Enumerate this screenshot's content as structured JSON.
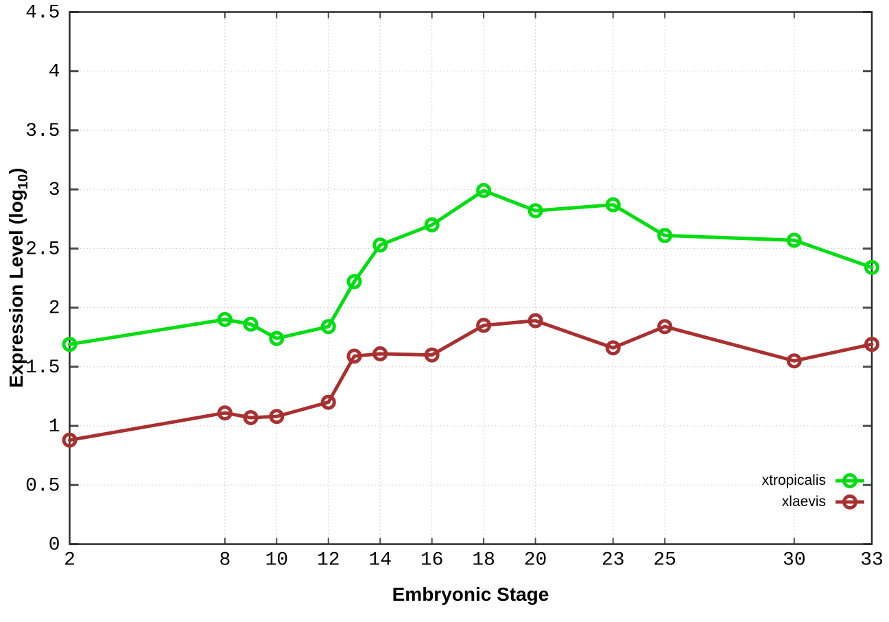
{
  "chart_data": {
    "type": "line",
    "xlabel": "Embryonic Stage",
    "ylabel": "Expression Level (log10)",
    "ylabel_parts": {
      "prefix": "Expression Level (log",
      "sub": "10",
      "suffix": ")"
    },
    "xlim": [
      2,
      33
    ],
    "ylim": [
      0,
      4.5
    ],
    "grid": true,
    "legend_position": "inside-bottom-right",
    "x": [
      2,
      8,
      9,
      10,
      12,
      13,
      14,
      16,
      18,
      20,
      23,
      25,
      30,
      33
    ],
    "x_tick_values": [
      2,
      8,
      10,
      12,
      14,
      16,
      18,
      20,
      23,
      25,
      30,
      33
    ],
    "x_tick_labels": [
      "2",
      "8",
      "10",
      "12",
      "14",
      "16",
      "18",
      "20",
      "23",
      "25",
      "30",
      "33"
    ],
    "y_tick_values": [
      0,
      0.5,
      1,
      1.5,
      2,
      2.5,
      3,
      3.5,
      4,
      4.5
    ],
    "y_tick_labels": [
      "0",
      "0.5",
      "1",
      "1.5",
      "2",
      "2.5",
      "3",
      "3.5",
      "4",
      "4.5"
    ],
    "series": [
      {
        "name": "xtropicalis",
        "color": "#00dd11",
        "values": [
          1.69,
          1.9,
          1.86,
          1.74,
          1.84,
          2.22,
          2.53,
          2.7,
          2.99,
          2.82,
          2.87,
          2.61,
          2.57,
          2.34
        ]
      },
      {
        "name": "xlaevis",
        "color": "#a93030",
        "values": [
          0.88,
          1.11,
          1.07,
          1.08,
          1.2,
          1.59,
          1.61,
          1.6,
          1.85,
          1.89,
          1.66,
          1.84,
          1.55,
          1.69
        ]
      }
    ],
    "colors": {
      "background": "#ffffff",
      "border": "#2a2a2a",
      "tick": "#4a4a4a",
      "grid": "#c2c2c2",
      "text": "#000000"
    }
  }
}
